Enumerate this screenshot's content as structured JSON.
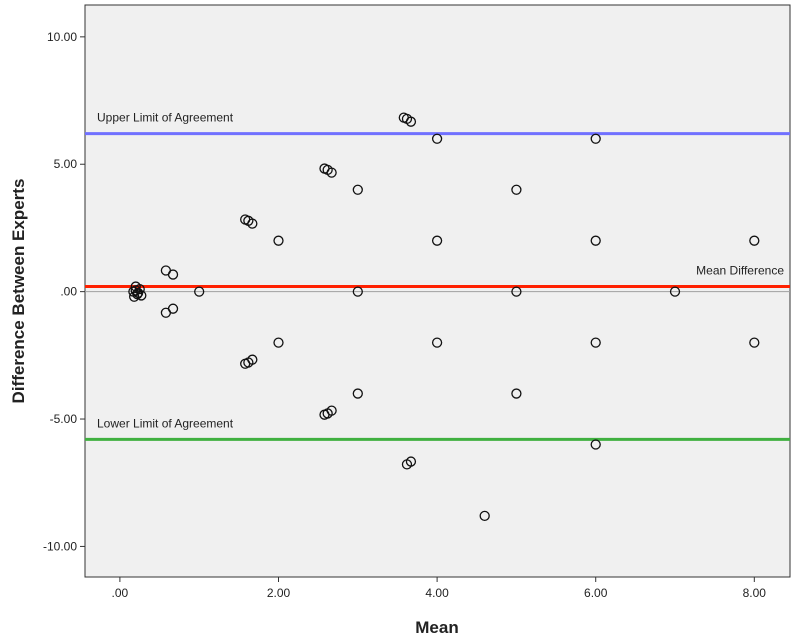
{
  "chart_data": {
    "type": "scatter",
    "title": "",
    "xlabel": "Mean",
    "ylabel": "Difference Between Experts",
    "xlim": [
      -0.44,
      8.45
    ],
    "ylim": [
      -11.2,
      11.25
    ],
    "grid": false,
    "background": "#f0f0f0",
    "x_ticks": [
      0,
      2,
      4,
      6,
      8
    ],
    "x_tick_labels": [
      ".00",
      "2.00",
      "4.00",
      "6.00",
      "8.00"
    ],
    "y_ticks": [
      10,
      5,
      0,
      -5,
      -10
    ],
    "y_tick_labels": [
      "10.00",
      "5.00",
      ".00",
      "-5.00",
      "-10.00"
    ],
    "reference_lines": [
      {
        "label": "Upper Limit of Agreement",
        "y": 6.2,
        "color": "#7070ff",
        "label_side": "left"
      },
      {
        "label": "Mean Difference",
        "y": 0.2,
        "color": "#ff2000",
        "label_side": "right"
      },
      {
        "label": "Lower Limit of Agreement",
        "y": -5.8,
        "color": "#40b040",
        "label_side": "left"
      },
      {
        "label": "",
        "y": 0,
        "color": "#a0a0a0",
        "label_side": "none"
      }
    ],
    "points": [
      [
        0.17,
        0
      ],
      [
        0.2,
        0.2
      ],
      [
        0.22,
        -0.1
      ],
      [
        0.25,
        0.1
      ],
      [
        0.18,
        -0.2
      ],
      [
        0.27,
        -0.15
      ],
      [
        0.2,
        0.05
      ],
      [
        0.23,
        -0.05
      ],
      [
        0.58,
        0.83
      ],
      [
        0.67,
        0.67
      ],
      [
        0.58,
        -0.83
      ],
      [
        0.67,
        -0.67
      ],
      [
        1,
        0
      ],
      [
        1.58,
        2.83
      ],
      [
        1.62,
        2.78
      ],
      [
        1.67,
        2.67
      ],
      [
        1.58,
        -2.83
      ],
      [
        1.62,
        -2.78
      ],
      [
        1.67,
        -2.67
      ],
      [
        2,
        2
      ],
      [
        2,
        -2
      ],
      [
        2.58,
        4.83
      ],
      [
        2.62,
        4.78
      ],
      [
        2.67,
        4.67
      ],
      [
        2.58,
        -4.83
      ],
      [
        2.62,
        -4.78
      ],
      [
        2.67,
        -4.67
      ],
      [
        3,
        4
      ],
      [
        3,
        0
      ],
      [
        3,
        -4
      ],
      [
        3.58,
        6.83
      ],
      [
        3.62,
        6.78
      ],
      [
        3.67,
        6.67
      ],
      [
        3.62,
        -6.78
      ],
      [
        3.67,
        -6.67
      ],
      [
        4,
        6
      ],
      [
        4,
        2
      ],
      [
        4,
        -2
      ],
      [
        4.6,
        -8.8
      ],
      [
        5,
        4
      ],
      [
        5,
        0
      ],
      [
        5,
        -4
      ],
      [
        6,
        6
      ],
      [
        6,
        2
      ],
      [
        6,
        -2
      ],
      [
        6,
        -6
      ],
      [
        7,
        0
      ],
      [
        8,
        2
      ],
      [
        8,
        -2
      ]
    ]
  }
}
